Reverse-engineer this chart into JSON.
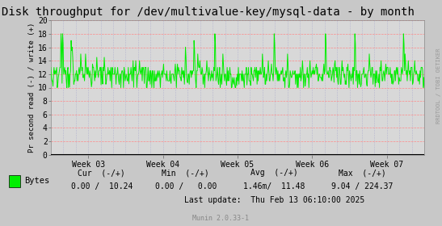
{
  "title": "Disk throughput for /dev/multivalue-key/mysql-data - by month",
  "ylabel": "Pr second read (-) / write (+)",
  "bg_color": "#c8c8c8",
  "plot_bg_color": "#d8d8d8",
  "grid_major_color": "#ff8888",
  "grid_minor_color": "#aaaacc",
  "line_color": "#00ee00",
  "ylim": [
    0,
    20
  ],
  "yticks": [
    0,
    2,
    4,
    6,
    8,
    10,
    12,
    14,
    16,
    18,
    20
  ],
  "week_labels": [
    "Week 03",
    "Week 04",
    "Week 05",
    "Week 06",
    "Week 07"
  ],
  "footer_cur_label": "Cur  (-/+)",
  "footer_cur": "0.00 /  10.24",
  "footer_min_label": "Min  (-/+)",
  "footer_min": "0.00 /   0.00",
  "footer_avg_label": "Avg  (-/+)",
  "footer_avg": "1.46m/  11.48",
  "footer_max_label": "Max  (-/+)",
  "footer_max": "9.04 / 224.37",
  "footer_update": "Last update:  Thu Feb 13 06:10:00 2025",
  "munin_version": "Munin 2.0.33-1",
  "legend_label": "Bytes",
  "rrdtool_label": "RRDTOOL / TOBI OETIKER",
  "title_fontsize": 10,
  "axis_fontsize": 7,
  "legend_fontsize": 7.5,
  "footer_fontsize": 7
}
